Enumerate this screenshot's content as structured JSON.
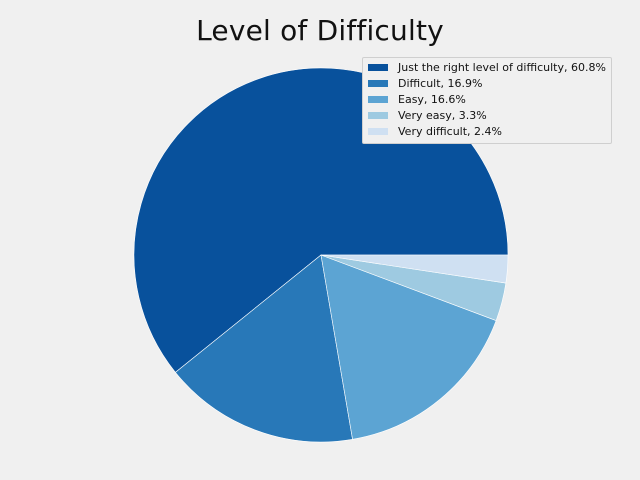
{
  "chart_data": {
    "type": "pie",
    "title": "Level of Difficulty",
    "start_angle_deg": 0,
    "direction": "counterclockwise",
    "legend_position": "top-right",
    "slices": [
      {
        "label": "Just the right level of difficulty, 60.8%",
        "value": 60.8,
        "color": "#08519c"
      },
      {
        "label": "Difficult, 16.9%",
        "value": 16.9,
        "color": "#2878b8"
      },
      {
        "label": "Easy, 16.6%",
        "value": 16.6,
        "color": "#5ca4d3"
      },
      {
        "label": "Very easy, 3.3%",
        "value": 3.3,
        "color": "#9ecae1"
      },
      {
        "label": "Very difficult, 2.4%",
        "value": 2.4,
        "color": "#cfe0f2"
      }
    ]
  }
}
